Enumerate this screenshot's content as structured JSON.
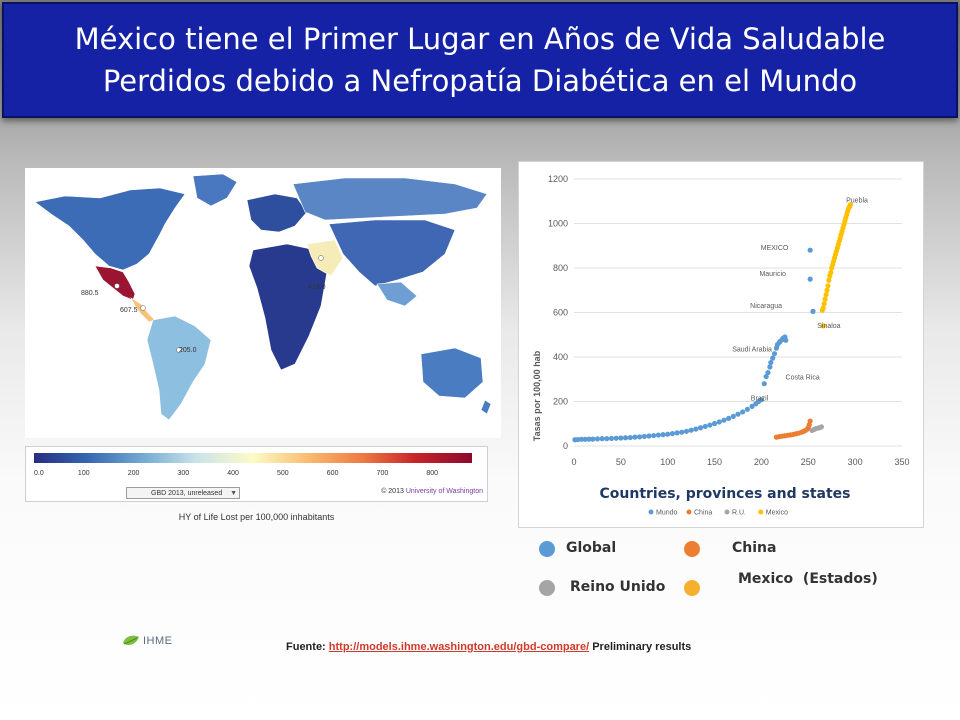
{
  "title": {
    "line1": "México tiene el Primer Lugar en Años de Vida Saludable",
    "line2": "Perdidos debido a Nefropatía Diabética en el Mundo"
  },
  "map": {
    "value_labels": [
      "880.5",
      "607.5",
      "419.0",
      "205.0"
    ],
    "legend_ticks": [
      "0.0",
      "100",
      "200",
      "300",
      "400",
      "500",
      "600",
      "700",
      "800"
    ],
    "legend_colors": [
      "#272d82",
      "#3566b0",
      "#74abd2",
      "#c8e3ea",
      "#fdfbc7",
      "#f9bf73",
      "#ee7a44",
      "#c8242a",
      "#8b0a2e"
    ],
    "dropdown_label": "GBD 2013, unreleased",
    "credit_prefix": "© 2013",
    "credit_org": "University of Washington",
    "caption": "HY of Life Lost  per 100,000 inhabitants"
  },
  "chart_data": {
    "type": "scatter",
    "title": "Countries, provinces and states",
    "xlabel": "",
    "ylabel": "Tasas por 100,00 hab",
    "xlim": [
      0,
      350
    ],
    "ylim": [
      0,
      1200
    ],
    "xticks": [
      "0",
      "50",
      "100",
      "150",
      "200",
      "250",
      "300",
      "350"
    ],
    "yticks": [
      "0",
      "200",
      "400",
      "600",
      "800",
      "1000",
      "1200"
    ],
    "legend_position": "bottom",
    "series": [
      {
        "name": "Mundo",
        "color": "#5b9bd5",
        "x": [
          1,
          4,
          8,
          12,
          16,
          20,
          25,
          30,
          35,
          40,
          45,
          50,
          55,
          60,
          65,
          70,
          75,
          80,
          85,
          90,
          95,
          100,
          105,
          110,
          115,
          120,
          125,
          130,
          135,
          140,
          145,
          150,
          155,
          160,
          165,
          170,
          175,
          180,
          185,
          190,
          194,
          197,
          200,
          203,
          205,
          207,
          209,
          210,
          212,
          214,
          216,
          217,
          219,
          220,
          222,
          223,
          225,
          226,
          252,
          252,
          255
        ],
        "y": [
          28,
          29,
          30,
          30,
          31,
          31,
          32,
          33,
          33,
          34,
          35,
          36,
          37,
          38,
          40,
          41,
          43,
          45,
          47,
          49,
          51,
          53,
          56,
          59,
          62,
          66,
          71,
          76,
          82,
          88,
          94,
          101,
          108,
          116,
          124,
          133,
          143,
          153,
          165,
          178,
          190,
          200,
          208,
          280,
          312,
          330,
          355,
          375,
          395,
          415,
          440,
          455,
          465,
          470,
          478,
          484,
          490,
          475,
          880,
          750,
          605
        ]
      },
      {
        "name": "China",
        "color": "#ed7d31",
        "x": [
          216,
          219,
          222,
          225,
          228,
          231,
          234,
          237,
          240,
          243,
          245,
          247,
          249,
          250,
          251,
          252
        ],
        "y": [
          40,
          42,
          44,
          46,
          48,
          50,
          52,
          55,
          58,
          62,
          66,
          70,
          76,
          82,
          95,
          112
        ]
      },
      {
        "name": "R.U.",
        "color": "#a5a5a5",
        "x": [
          254,
          256,
          258,
          260,
          262,
          264
        ],
        "y": [
          70,
          74,
          78,
          80,
          82,
          86
        ]
      },
      {
        "name": "Mexico",
        "color": "#ffc000",
        "x": [
          265,
          266,
          267,
          268,
          269,
          270,
          271,
          272,
          273,
          274,
          275,
          276,
          277,
          278,
          279,
          280,
          281,
          282,
          283,
          284,
          285,
          286,
          287,
          288,
          289,
          290,
          291,
          292,
          293,
          294,
          295,
          266
        ],
        "y": [
          610,
          620,
          640,
          660,
          680,
          700,
          720,
          745,
          765,
          780,
          800,
          815,
          830,
          845,
          860,
          875,
          890,
          905,
          920,
          935,
          950,
          965,
          980,
          995,
          1010,
          1025,
          1040,
          1055,
          1068,
          1075,
          1085,
          540
        ]
      }
    ],
    "annotations": [
      {
        "text": "Puebla",
        "x": 302,
        "y": 1095
      },
      {
        "text": "MEXICO",
        "x": 214,
        "y": 880
      },
      {
        "text": "Mauricio",
        "x": 212,
        "y": 765
      },
      {
        "text": "Nicaragua",
        "x": 205,
        "y": 620
      },
      {
        "text": "Sinaloa",
        "x": 272,
        "y": 530
      },
      {
        "text": "Saudi Arabia",
        "x": 190,
        "y": 425
      },
      {
        "text": "Costa Rica",
        "x": 244,
        "y": 300
      },
      {
        "text": "Brazil",
        "x": 198,
        "y": 205
      }
    ]
  },
  "key": {
    "items": [
      {
        "label": "Global",
        "color": "#5b9bd5"
      },
      {
        "label": "China",
        "color": "#ed7d31"
      },
      {
        "label": "Reino Unido",
        "color": "#a5a5a5"
      },
      {
        "label": "Mexico  (Estados)",
        "color": "#f5b030"
      }
    ]
  },
  "footer": {
    "logo_text": "IHME",
    "source_prefix": "Fuente:",
    "source_url": "http://models.ihme.washington.edu/gbd-compare/",
    "source_suffix": "Preliminary results"
  }
}
